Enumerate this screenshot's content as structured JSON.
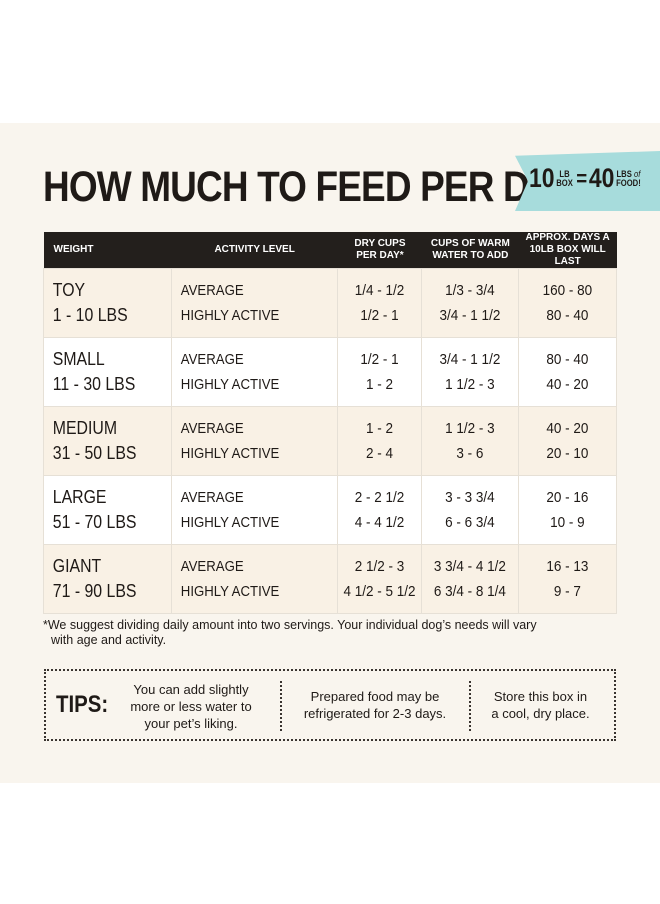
{
  "title": "HOW MUCH TO FEED PER DAY",
  "badge": {
    "left_number": "10",
    "left_unit_top": "LB",
    "left_unit_bottom": "BOX",
    "equals": "=",
    "right_number": "40",
    "right_unit_top": "LBS",
    "right_unit_of": "of",
    "right_unit_bottom": "FOOD!"
  },
  "table": {
    "headers": {
      "weight": "WEIGHT",
      "activity": "ACTIVITY LEVEL",
      "dry_cups_1": "DRY CUPS",
      "dry_cups_2": "PER DAY*",
      "water_1": "CUPS OF WARM",
      "water_2": "WATER TO ADD",
      "days_1": "APPROX. DAYS A",
      "days_2": "10LB BOX WILL LAST"
    },
    "rows": [
      {
        "name": "TOY",
        "range": "1 - 10 LBS",
        "act1": "AVERAGE",
        "act2": "HIGHLY ACTIVE",
        "dry1": "1/4 - 1/2",
        "dry2": "1/2 - 1",
        "water1": "1/3 - 3/4",
        "water2": "3/4 - 1 1/2",
        "days1": "160 - 80",
        "days2": "80 - 40"
      },
      {
        "name": "SMALL",
        "range": "11 - 30 LBS",
        "act1": "AVERAGE",
        "act2": "HIGHLY ACTIVE",
        "dry1": "1/2 - 1",
        "dry2": "1 - 2",
        "water1": "3/4 - 1 1/2",
        "water2": "1 1/2 - 3",
        "days1": "80 - 40",
        "days2": "40 - 20"
      },
      {
        "name": "MEDIUM",
        "range": "31 - 50 LBS",
        "act1": "AVERAGE",
        "act2": "HIGHLY ACTIVE",
        "dry1": "1 - 2",
        "dry2": "2 - 4",
        "water1": "1 1/2 - 3",
        "water2": "3 - 6",
        "days1": "40 - 20",
        "days2": "20 - 10"
      },
      {
        "name": "LARGE",
        "range": "51 - 70 LBS",
        "act1": "AVERAGE",
        "act2": "HIGHLY ACTIVE",
        "dry1": "2 - 2 1/2",
        "dry2": "4 - 4 1/2",
        "water1": "3 - 3 3/4",
        "water2": "6 - 6 3/4",
        "days1": "20 - 16",
        "days2": "10 - 9"
      },
      {
        "name": "GIANT",
        "range": "71 - 90 LBS",
        "act1": "AVERAGE",
        "act2": "HIGHLY ACTIVE",
        "dry1": "2 1/2 - 3",
        "dry2": "4 1/2 - 5 1/2",
        "water1": "3 3/4 - 4 1/2",
        "water2": "6 3/4 - 8 1/4",
        "days1": "16 - 13",
        "days2": "9 - 7"
      }
    ]
  },
  "note_line1": "*We suggest dividing daily amount into two servings. Your individual dog’s needs will vary",
  "note_line2": "with age and activity.",
  "tips": {
    "label": "TIPS:",
    "tip1_l1": "You can add slightly",
    "tip1_l2": "more or less water to",
    "tip1_l3": "your pet’s liking.",
    "tip2_l1": "Prepared food may be",
    "tip2_l2": "refrigerated for 2-3 days.",
    "tip3_l1": "Store this box in",
    "tip3_l2": "a cool, dry place."
  },
  "colors": {
    "panel_bg": "#f9f5ee",
    "header_bg": "#231f1c",
    "row_tint": "#f9f1e5",
    "badge_bg": "#a7dcdc",
    "text": "#1f1a17"
  }
}
